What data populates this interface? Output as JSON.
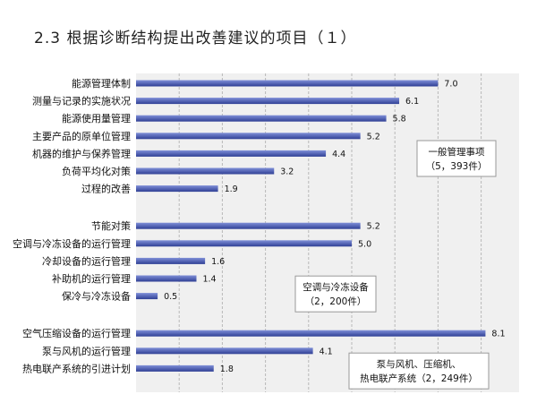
{
  "title": "2.3 根据诊断结构提出改善建议的项目（１）",
  "chart_data": {
    "type": "bar",
    "orientation": "horizontal",
    "xlim": [
      0,
      8.5
    ],
    "grid": true,
    "groups": [
      {
        "label_lines": [
          "一般管理事项",
          "（5，393件）"
        ],
        "bars": [
          {
            "category": "能源管理体制",
            "value": 7.0,
            "label": "7.0"
          },
          {
            "category": "测量与记录的实施状况",
            "value": 6.1,
            "label": "6.1"
          },
          {
            "category": "能源使用量管理",
            "value": 5.8,
            "label": "5.8"
          },
          {
            "category": "主要产品的原单位管理",
            "value": 5.2,
            "label": "5.2"
          },
          {
            "category": "机器的维护与保养管理",
            "value": 4.4,
            "label": "4.4"
          },
          {
            "category": "负荷平均化对策",
            "value": 3.2,
            "label": "3.2"
          },
          {
            "category": "过程的改善",
            "value": 1.9,
            "label": "1.9"
          }
        ]
      },
      {
        "label_lines": [
          "空调与冷冻设备",
          "（2，200件）"
        ],
        "bars": [
          {
            "category": "节能对策",
            "value": 5.2,
            "label": "5.2"
          },
          {
            "category": "空调与冷冻设备的运行管理",
            "value": 5.0,
            "label": "5.0"
          },
          {
            "category": "冷却设备的运行管理",
            "value": 1.6,
            "label": "1.6"
          },
          {
            "category": "补助机的运行管理",
            "value": 1.4,
            "label": "1.4"
          },
          {
            "category": "保冷与冷冻设备",
            "value": 0.5,
            "label": "0.5"
          }
        ]
      },
      {
        "label_lines": [
          "泵与风机、压缩机、",
          "热电联产系统（2，249件）"
        ],
        "bars": [
          {
            "category": "空气压缩设备的运行管理",
            "value": 8.1,
            "label": "8.1"
          },
          {
            "category": "泵与风机的运行管理",
            "value": 4.1,
            "label": "4.1"
          },
          {
            "category": "热电联产系统的引进计划",
            "value": 1.8,
            "label": "1.8"
          }
        ]
      }
    ]
  },
  "colors": {
    "plot_bg": "#f0f0f0",
    "bar_top": "#7f8fd8",
    "bar_bottom": "#2f3f95",
    "grid": "#b8b8b8"
  }
}
